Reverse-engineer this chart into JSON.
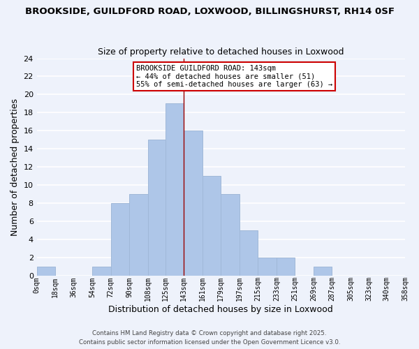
{
  "title1": "BROOKSIDE, GUILDFORD ROAD, LOXWOOD, BILLINGSHURST, RH14 0SF",
  "title2": "Size of property relative to detached houses in Loxwood",
  "xlabel": "Distribution of detached houses by size in Loxwood",
  "ylabel": "Number of detached properties",
  "bin_edges": [
    0,
    18,
    36,
    54,
    72,
    90,
    108,
    125,
    143,
    161,
    179,
    197,
    215,
    233,
    251,
    269,
    287,
    305,
    323,
    340,
    358
  ],
  "counts": [
    1,
    0,
    0,
    1,
    8,
    9,
    15,
    19,
    16,
    11,
    9,
    5,
    2,
    2,
    0,
    1,
    0,
    0,
    0,
    0
  ],
  "bar_color": "#aec6e8",
  "bar_edge_color": "#a0b8d8",
  "vline_x": 143,
  "vline_color": "#990000",
  "annotation_line1": "BROOKSIDE GUILDFORD ROAD: 143sqm",
  "annotation_line2": "← 44% of detached houses are smaller (51)",
  "annotation_line3": "55% of semi-detached houses are larger (63) →",
  "annotation_box_color": "#ffffff",
  "annotation_box_edge_color": "#cc0000",
  "ylim": [
    0,
    24
  ],
  "yticks": [
    0,
    2,
    4,
    6,
    8,
    10,
    12,
    14,
    16,
    18,
    20,
    22,
    24
  ],
  "tick_labels": [
    "0sqm",
    "18sqm",
    "36sqm",
    "54sqm",
    "72sqm",
    "90sqm",
    "108sqm",
    "125sqm",
    "143sqm",
    "161sqm",
    "179sqm",
    "197sqm",
    "215sqm",
    "233sqm",
    "251sqm",
    "269sqm",
    "287sqm",
    "305sqm",
    "323sqm",
    "340sqm",
    "358sqm"
  ],
  "background_color": "#eef2fb",
  "grid_color": "#ffffff",
  "footer1": "Contains HM Land Registry data © Crown copyright and database right 2025.",
  "footer2": "Contains public sector information licensed under the Open Government Licence v3.0."
}
